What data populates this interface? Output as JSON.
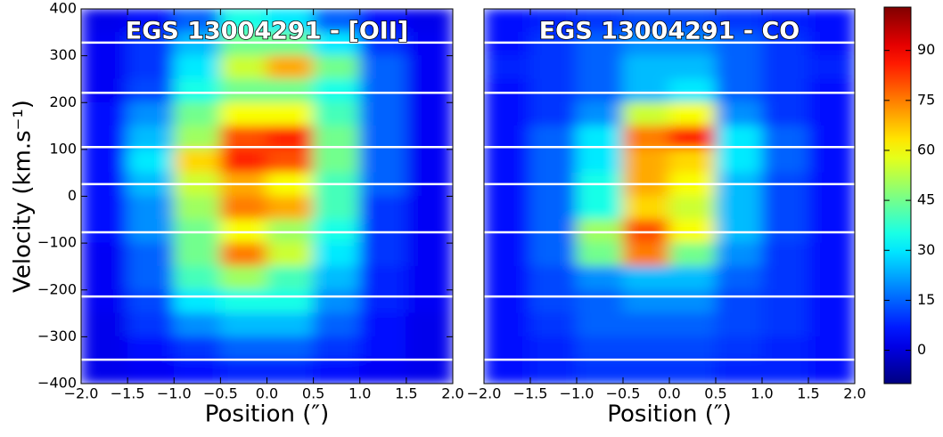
{
  "chart_data": [
    {
      "type": "heatmap",
      "title": "EGS 13004291 - [OII]",
      "xlabel": "Position (″)",
      "ylabel": "Velocity (km.s⁻¹)",
      "x": [
        -1.75,
        -1.25,
        -0.75,
        -0.25,
        0.25,
        0.75,
        1.25,
        1.75
      ],
      "y": [
        375,
        325,
        275,
        225,
        175,
        125,
        75,
        25,
        -25,
        -75,
        -125,
        -175,
        -225,
        -275,
        -325,
        -375
      ],
      "z": [
        [
          2,
          5,
          15,
          35,
          30,
          15,
          5,
          2
        ],
        [
          3,
          10,
          25,
          45,
          45,
          30,
          10,
          3
        ],
        [
          3,
          10,
          30,
          55,
          70,
          45,
          15,
          3
        ],
        [
          3,
          12,
          35,
          45,
          45,
          35,
          15,
          3
        ],
        [
          5,
          20,
          45,
          60,
          60,
          40,
          15,
          3
        ],
        [
          5,
          25,
          50,
          80,
          85,
          45,
          15,
          3
        ],
        [
          5,
          30,
          65,
          85,
          80,
          45,
          15,
          3
        ],
        [
          5,
          25,
          55,
          70,
          60,
          40,
          15,
          3
        ],
        [
          5,
          20,
          50,
          75,
          70,
          40,
          10,
          3
        ],
        [
          5,
          20,
          45,
          60,
          50,
          35,
          10,
          3
        ],
        [
          3,
          15,
          45,
          75,
          55,
          30,
          10,
          3
        ],
        [
          3,
          15,
          40,
          50,
          40,
          25,
          8,
          3
        ],
        [
          3,
          12,
          30,
          35,
          35,
          20,
          8,
          3
        ],
        [
          2,
          10,
          20,
          25,
          25,
          15,
          5,
          2
        ],
        [
          2,
          5,
          10,
          15,
          15,
          10,
          5,
          2
        ],
        [
          2,
          3,
          5,
          8,
          8,
          5,
          3,
          2
        ]
      ],
      "xlim": [
        -2,
        2
      ],
      "ylim": [
        -400,
        400
      ],
      "xticks": [
        {
          "value": -2,
          "label": "−2.0"
        },
        {
          "value": -1.5,
          "label": "−1.5"
        },
        {
          "value": -1,
          "label": "−1.0"
        },
        {
          "value": -0.5,
          "label": "−0.5"
        },
        {
          "value": 0,
          "label": "0.0"
        },
        {
          "value": 0.5,
          "label": "0.5"
        },
        {
          "value": 1,
          "label": "1.0"
        },
        {
          "value": 1.5,
          "label": "1.5"
        },
        {
          "value": 2,
          "label": "2.0"
        }
      ],
      "yticks": [
        {
          "value": 400,
          "label": "400"
        },
        {
          "value": 300,
          "label": "300"
        },
        {
          "value": 200,
          "label": "200"
        },
        {
          "value": 100,
          "label": "100"
        },
        {
          "value": 0,
          "label": "0"
        },
        {
          "value": -100,
          "label": "−100"
        },
        {
          "value": -200,
          "label": "−200"
        },
        {
          "value": -300,
          "label": "−300"
        },
        {
          "value": -400,
          "label": "−400"
        }
      ],
      "hlines": [
        328,
        221,
        105,
        26,
        -77,
        -214,
        -349
      ]
    },
    {
      "type": "heatmap",
      "title": "EGS 13004291 - CO",
      "xlabel": "Position (″)",
      "x": [
        -1.75,
        -1.25,
        -0.75,
        -0.25,
        0.25,
        0.75,
        1.25,
        1.75
      ],
      "y": [
        375,
        325,
        275,
        225,
        175,
        125,
        75,
        25,
        -25,
        -75,
        -125,
        -175,
        -225,
        -275,
        -325,
        -375
      ],
      "z": [
        [
          5,
          8,
          10,
          12,
          12,
          10,
          8,
          5
        ],
        [
          5,
          10,
          15,
          20,
          20,
          15,
          10,
          5
        ],
        [
          8,
          10,
          15,
          25,
          25,
          15,
          10,
          8
        ],
        [
          5,
          10,
          15,
          25,
          30,
          15,
          10,
          5
        ],
        [
          5,
          10,
          20,
          55,
          60,
          20,
          10,
          5
        ],
        [
          5,
          15,
          30,
          75,
          85,
          30,
          15,
          5
        ],
        [
          5,
          15,
          30,
          70,
          65,
          30,
          15,
          5
        ],
        [
          5,
          15,
          35,
          70,
          60,
          25,
          12,
          5
        ],
        [
          5,
          15,
          35,
          65,
          55,
          25,
          12,
          5
        ],
        [
          5,
          15,
          50,
          80,
          60,
          25,
          12,
          5
        ],
        [
          5,
          15,
          45,
          75,
          45,
          20,
          10,
          5
        ],
        [
          5,
          12,
          20,
          25,
          25,
          15,
          10,
          5
        ],
        [
          5,
          12,
          15,
          20,
          20,
          12,
          10,
          5
        ],
        [
          5,
          10,
          15,
          15,
          15,
          12,
          10,
          5
        ],
        [
          5,
          8,
          12,
          12,
          12,
          10,
          8,
          5
        ],
        [
          5,
          8,
          10,
          10,
          10,
          8,
          8,
          5
        ]
      ],
      "xlim": [
        -2,
        2
      ],
      "ylim": [
        -400,
        400
      ],
      "xticks": [
        {
          "value": -2,
          "label": "−2.0"
        },
        {
          "value": -1.5,
          "label": "−1.5"
        },
        {
          "value": -1,
          "label": "−1.0"
        },
        {
          "value": -0.5,
          "label": "−0.5"
        },
        {
          "value": 0,
          "label": "0.0"
        },
        {
          "value": 0.5,
          "label": "0.5"
        },
        {
          "value": 1,
          "label": "1.0"
        },
        {
          "value": 1.5,
          "label": "1.5"
        },
        {
          "value": 2,
          "label": "2.0"
        }
      ],
      "hlines": [
        328,
        221,
        105,
        26,
        -77,
        -214,
        -349
      ]
    }
  ],
  "colorbar": {
    "colormap": "jet",
    "lim": [
      -10,
      103
    ],
    "ticks": [
      0,
      15,
      30,
      45,
      60,
      75,
      90
    ]
  }
}
